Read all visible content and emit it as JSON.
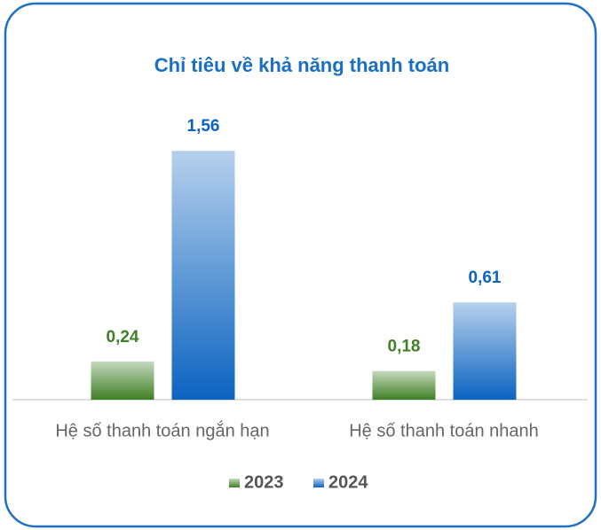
{
  "chart_data": {
    "type": "bar",
    "title": "Chỉ tiêu về khả năng thanh toán",
    "categories": [
      "Hệ số thanh toán ngắn hạn",
      "Hệ số thanh toán nhanh"
    ],
    "series": [
      {
        "name": "2023",
        "color": "#3f7f25",
        "values": [
          0.24,
          0.18
        ],
        "value_labels": [
          "0,24",
          "0,18"
        ]
      },
      {
        "name": "2024",
        "color": "#0b63c1",
        "values": [
          1.56,
          0.61
        ],
        "value_labels": [
          "1,56",
          "0,61"
        ]
      }
    ]
  }
}
